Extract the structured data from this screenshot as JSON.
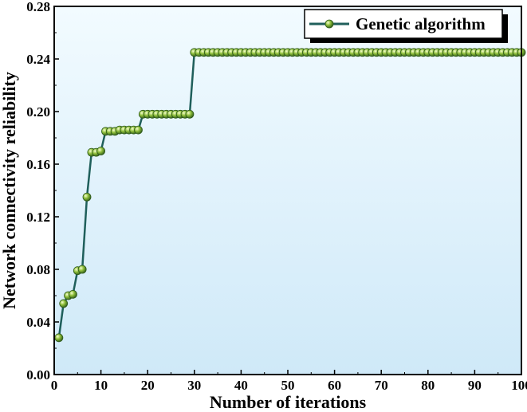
{
  "chart_data": {
    "type": "line",
    "title": "",
    "xlabel": "Number of iterations",
    "ylabel": "Network connectivity reliability",
    "xlim": [
      0,
      100
    ],
    "ylim": [
      0,
      0.28
    ],
    "x_ticks": [
      0,
      10,
      20,
      30,
      40,
      50,
      60,
      70,
      80,
      90,
      100
    ],
    "y_ticks": [
      "0.00",
      "0.04",
      "0.08",
      "0.12",
      "0.16",
      "0.20",
      "0.24",
      "0.28"
    ],
    "grid": false,
    "legend_position": "top-right",
    "colors": {
      "line": "#1f5f5b",
      "marker_fill": "#8fbf3a",
      "marker_edge": "#2e5a1a",
      "background_top": "#f2fbff",
      "background_bottom": "#cfe9f8"
    },
    "series": [
      {
        "name": "Genetic algorithm",
        "x": [
          1,
          2,
          3,
          4,
          5,
          6,
          7,
          8,
          9,
          10,
          11,
          12,
          13,
          14,
          15,
          16,
          17,
          18,
          19,
          20,
          21,
          22,
          23,
          24,
          25,
          26,
          27,
          28,
          29,
          30,
          31,
          32,
          33,
          34,
          35,
          36,
          37,
          38,
          39,
          40,
          41,
          42,
          43,
          44,
          45,
          46,
          47,
          48,
          49,
          50,
          51,
          52,
          53,
          54,
          55,
          56,
          57,
          58,
          59,
          60,
          61,
          62,
          63,
          64,
          65,
          66,
          67,
          68,
          69,
          70,
          71,
          72,
          73,
          74,
          75,
          76,
          77,
          78,
          79,
          80,
          81,
          82,
          83,
          84,
          85,
          86,
          87,
          88,
          89,
          90,
          91,
          92,
          93,
          94,
          95,
          96,
          97,
          98,
          99,
          100
        ],
        "y": [
          0.028,
          0.054,
          0.06,
          0.061,
          0.079,
          0.08,
          0.135,
          0.169,
          0.169,
          0.17,
          0.185,
          0.185,
          0.185,
          0.186,
          0.186,
          0.186,
          0.186,
          0.186,
          0.198,
          0.198,
          0.198,
          0.198,
          0.198,
          0.198,
          0.198,
          0.198,
          0.198,
          0.198,
          0.198,
          0.245,
          0.245,
          0.245,
          0.245,
          0.245,
          0.245,
          0.245,
          0.245,
          0.245,
          0.245,
          0.245,
          0.245,
          0.245,
          0.245,
          0.245,
          0.245,
          0.245,
          0.245,
          0.245,
          0.245,
          0.245,
          0.245,
          0.245,
          0.245,
          0.245,
          0.245,
          0.245,
          0.245,
          0.245,
          0.245,
          0.245,
          0.245,
          0.245,
          0.245,
          0.245,
          0.245,
          0.245,
          0.245,
          0.245,
          0.245,
          0.245,
          0.245,
          0.245,
          0.245,
          0.245,
          0.245,
          0.245,
          0.245,
          0.245,
          0.245,
          0.245,
          0.245,
          0.245,
          0.245,
          0.245,
          0.245,
          0.245,
          0.245,
          0.245,
          0.245,
          0.245,
          0.245,
          0.245,
          0.245,
          0.245,
          0.245,
          0.245,
          0.245,
          0.245,
          0.245,
          0.245
        ]
      }
    ]
  }
}
